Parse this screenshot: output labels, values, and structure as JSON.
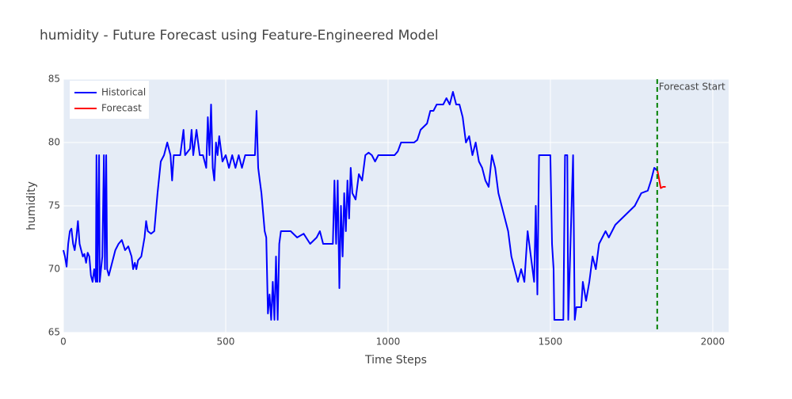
{
  "chart_data": {
    "type": "line",
    "title": "humidity - Future Forecast using Feature-Engineered Model",
    "x_label": "Time Steps",
    "y_label": "humidity",
    "xlim": [
      0,
      2049
    ],
    "ylim": [
      65,
      85
    ],
    "xticks": [
      0,
      500,
      1000,
      1500,
      2000
    ],
    "yticks": [
      65,
      70,
      75,
      80,
      85
    ],
    "grid": true,
    "legend": "upper left",
    "series": [
      {
        "name": "Historical",
        "color": "#0000ff",
        "x": [
          0,
          5,
          10,
          15,
          20,
          25,
          30,
          35,
          40,
          45,
          50,
          55,
          60,
          65,
          70,
          75,
          80,
          85,
          90,
          95,
          100,
          102,
          105,
          110,
          112,
          120,
          125,
          128,
          132,
          135,
          140,
          150,
          160,
          170,
          180,
          190,
          200,
          210,
          215,
          220,
          225,
          230,
          240,
          250,
          255,
          260,
          270,
          280,
          290,
          300,
          310,
          320,
          325,
          330,
          335,
          340,
          360,
          370,
          375,
          390,
          395,
          400,
          410,
          420,
          430,
          440,
          445,
          450,
          455,
          460,
          465,
          470,
          475,
          480,
          490,
          500,
          510,
          520,
          530,
          540,
          550,
          560,
          580,
          590,
          595,
          600,
          605,
          610,
          620,
          625,
          630,
          635,
          640,
          645,
          650,
          655,
          660,
          665,
          670,
          700,
          720,
          740,
          760,
          780,
          790,
          800,
          830,
          835,
          840,
          845,
          850,
          855,
          860,
          865,
          870,
          875,
          880,
          885,
          890,
          900,
          910,
          920,
          930,
          940,
          950,
          960,
          970,
          1000,
          1020,
          1030,
          1040,
          1060,
          1080,
          1090,
          1100,
          1120,
          1130,
          1140,
          1150,
          1170,
          1180,
          1190,
          1200,
          1210,
          1220,
          1230,
          1240,
          1250,
          1260,
          1270,
          1280,
          1290,
          1300,
          1310,
          1320,
          1330,
          1340,
          1350,
          1360,
          1370,
          1380,
          1390,
          1400,
          1410,
          1420,
          1430,
          1440,
          1450,
          1455,
          1460,
          1465,
          1480,
          1500,
          1505,
          1510,
          1512,
          1540,
          1545,
          1552,
          1555,
          1570,
          1575,
          1580,
          1595,
          1600,
          1610,
          1620,
          1630,
          1640,
          1650,
          1660,
          1670,
          1680,
          1700,
          1720,
          1740,
          1760,
          1780,
          1800,
          1810,
          1820,
          1828
        ],
        "values": [
          71.5,
          71,
          70.2,
          72,
          73,
          73.2,
          72,
          71.5,
          72.5,
          73.8,
          72,
          71.5,
          71,
          71.2,
          70.5,
          71.3,
          71,
          69.5,
          69,
          70,
          69,
          79,
          69,
          79,
          69,
          71,
          79,
          70,
          79,
          70,
          69.5,
          70.5,
          71.5,
          72,
          72.3,
          71.5,
          71.8,
          71,
          70,
          70.5,
          70,
          70.7,
          71,
          72.5,
          73.8,
          73,
          72.8,
          73,
          76,
          78.5,
          79,
          80,
          79.5,
          79,
          77,
          79,
          79,
          81,
          79,
          79.5,
          81,
          79,
          81,
          79,
          79,
          78,
          82,
          79,
          83,
          78,
          77,
          80,
          79,
          80.5,
          78.5,
          79,
          78,
          79,
          78,
          79,
          78,
          79,
          79,
          79,
          82.5,
          78,
          77,
          76,
          73,
          72.5,
          66.5,
          68,
          66,
          69,
          66,
          71,
          66,
          72,
          73,
          73,
          72.5,
          72.8,
          72,
          72.5,
          73,
          72,
          72,
          77,
          72,
          77,
          68.5,
          75,
          71,
          76,
          73,
          77,
          74,
          78,
          76,
          75.5,
          77.5,
          77,
          79,
          79.2,
          79,
          78.5,
          79,
          79,
          79,
          79.3,
          80,
          80,
          80,
          80.2,
          81,
          81.5,
          82.5,
          82.5,
          83,
          83,
          83.5,
          83,
          84,
          83,
          83,
          82,
          80,
          80.5,
          79,
          80,
          78.5,
          78,
          77,
          76.5,
          79,
          78,
          76,
          75,
          74,
          73,
          71,
          70,
          69,
          70,
          69,
          73,
          71,
          69,
          75,
          68,
          79,
          79,
          79,
          72,
          70,
          66,
          66,
          79,
          79,
          66,
          79,
          66,
          67,
          67,
          69,
          67.5,
          69,
          71,
          70,
          72,
          72.5,
          73,
          72.5,
          73.5,
          74,
          74.5,
          75,
          76,
          76.2,
          77,
          78,
          77.8
        ]
      },
      {
        "name": "Forecast",
        "color": "#ff0000",
        "x": [
          1828,
          1834,
          1840,
          1847,
          1855
        ],
        "values": [
          78,
          77.2,
          76.4,
          76.5,
          76.5
        ]
      }
    ],
    "vline": {
      "x": 1829,
      "color": "#008000",
      "label": "Forecast Start"
    }
  }
}
